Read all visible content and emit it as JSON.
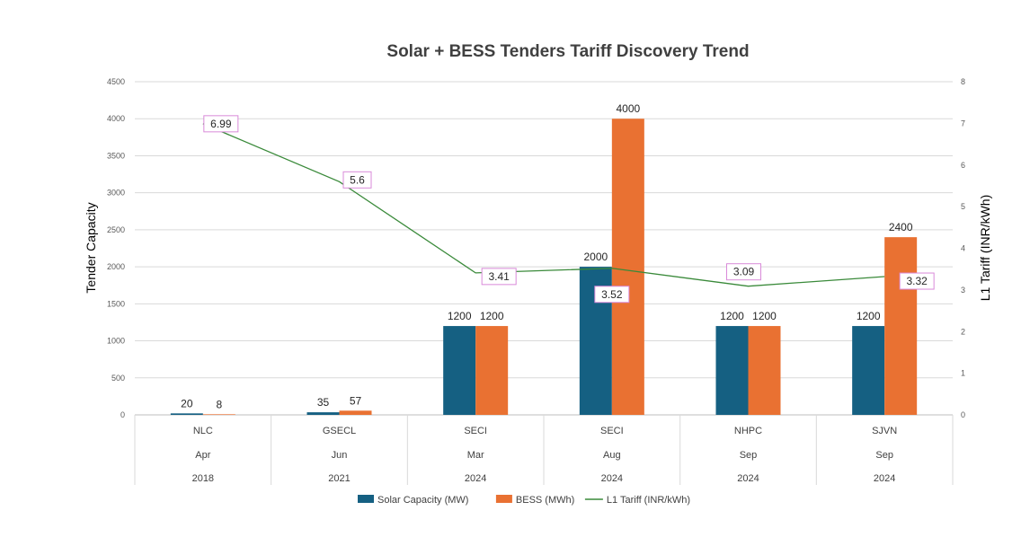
{
  "chart_data": {
    "type": "bar",
    "title": "Solar + BESS Tenders Tariff Discovery Trend",
    "ylabel": "Tender Capacity",
    "y2label": "L1 Tariff (INR/kWh)",
    "ylim": [
      0,
      4500
    ],
    "y2lim": [
      0,
      8
    ],
    "yticks": [
      "0",
      "500",
      "1000",
      "1500",
      "2000",
      "2500",
      "3000",
      "3500",
      "4000",
      "4500"
    ],
    "y2ticks": [
      "0",
      "1",
      "2",
      "3",
      "4",
      "5",
      "6",
      "7",
      "8"
    ],
    "grid": true,
    "legend_position": "bottom",
    "categories": [
      {
        "name": "NLC",
        "month": "Apr",
        "year": "2018"
      },
      {
        "name": "GSECL",
        "month": "Jun",
        "year": "2021"
      },
      {
        "name": "SECI",
        "month": "Mar",
        "year": "2024"
      },
      {
        "name": "SECI",
        "month": "Aug",
        "year": "2024"
      },
      {
        "name": "NHPC",
        "month": "Sep",
        "year": "2024"
      },
      {
        "name": "SJVN",
        "month": "Sep",
        "year": "2024"
      }
    ],
    "series": [
      {
        "name": "Solar Capacity (MW)",
        "type": "bar",
        "axis": "left",
        "color": "#156082",
        "values": [
          20,
          35,
          1200,
          2000,
          1200,
          1200
        ],
        "labels": [
          "20",
          "35",
          "1200",
          "2000",
          "1200",
          "1200"
        ]
      },
      {
        "name": "BESS (MWh)",
        "type": "bar",
        "axis": "left",
        "color": "#E97132",
        "values": [
          8,
          57,
          1200,
          4000,
          1200,
          2400
        ],
        "labels": [
          "8",
          "57",
          "1200",
          "4000",
          "1200",
          "2400"
        ]
      },
      {
        "name": "L1 Tariff (INR/kWh)",
        "type": "line",
        "axis": "right",
        "color": "#3A8A3A",
        "label_border_color": "#D98AD9",
        "values": [
          6.99,
          5.6,
          3.41,
          3.52,
          3.09,
          3.32
        ],
        "labels": [
          "6.99",
          "5.6",
          "3.41",
          "3.52",
          "3.09",
          "3.32"
        ]
      }
    ]
  }
}
